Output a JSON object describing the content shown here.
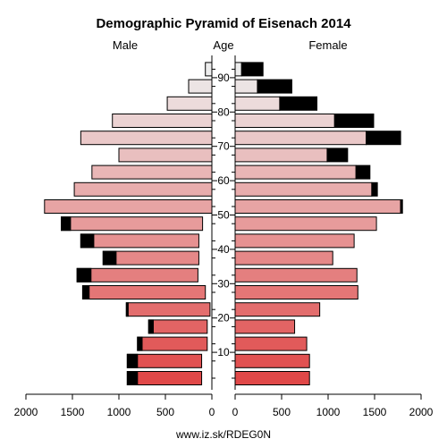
{
  "chart_data": {
    "type": "bar",
    "title": "Demographic Pyramid of Eisenach 2014",
    "left_label": "Male",
    "center_label": "Age",
    "right_label": "Female",
    "source": "www.iz.sk/RDEG0N",
    "age_ticks": [
      "10",
      "20",
      "30",
      "40",
      "50",
      "60",
      "70",
      "80",
      "90"
    ],
    "x_ticks": [
      "2000",
      "1500",
      "1000",
      "500",
      "0",
      "0",
      "500",
      "1000",
      "1500",
      "2000"
    ],
    "xlim": [
      0,
      2000
    ],
    "age_groups": [
      "0-4",
      "5-9",
      "10-14",
      "15-19",
      "20-24",
      "25-29",
      "30-34",
      "35-39",
      "40-44",
      "45-49",
      "50-54",
      "55-59",
      "60-64",
      "65-69",
      "70-74",
      "75-79",
      "80-84",
      "85-89",
      "90+"
    ],
    "male": {
      "total": [
        910,
        910,
        800,
        680,
        920,
        1390,
        1450,
        1170,
        1410,
        1620,
        1800,
        1480,
        1290,
        1000,
        1410,
        1070,
        480,
        250,
        70
      ],
      "foreign": [
        110,
        110,
        50,
        50,
        20,
        70,
        150,
        140,
        140,
        100,
        0,
        0,
        0,
        0,
        0,
        0,
        0,
        0,
        0
      ]
    },
    "female": {
      "total": [
        800,
        800,
        770,
        640,
        910,
        1320,
        1310,
        1050,
        1280,
        1520,
        1800,
        1530,
        1450,
        1210,
        1780,
        1490,
        880,
        610,
        300
      ],
      "foreign": [
        0,
        0,
        0,
        0,
        0,
        0,
        0,
        0,
        0,
        0,
        20,
        60,
        150,
        220,
        370,
        420,
        400,
        370,
        230
      ]
    },
    "colors": {
      "foreign": "#000000",
      "male_gradient": [
        "#e04848",
        "#ededed"
      ],
      "female_gradient": [
        "#e04848",
        "#ededed"
      ]
    }
  }
}
